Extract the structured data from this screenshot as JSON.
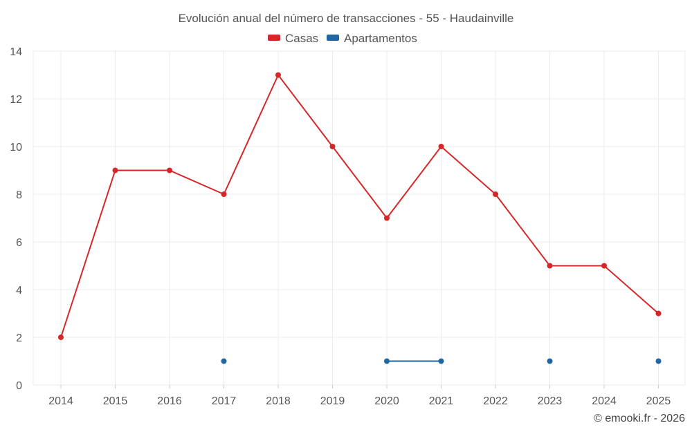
{
  "chart_data": {
    "type": "line",
    "title": "Evolución anual del número de transacciones - 55 - Haudainville",
    "categories": [
      "2014",
      "2015",
      "2016",
      "2017",
      "2018",
      "2019",
      "2020",
      "2021",
      "2022",
      "2023",
      "2024",
      "2025"
    ],
    "series": [
      {
        "name": "Casas",
        "color": "#d62728",
        "values": [
          2,
          9,
          9,
          8,
          13,
          10,
          7,
          10,
          8,
          5,
          5,
          3
        ]
      },
      {
        "name": "Apartamentos",
        "color": "#1f66a3",
        "values": [
          null,
          null,
          null,
          1,
          null,
          null,
          1,
          1,
          null,
          1,
          null,
          1
        ]
      }
    ],
    "ylim": [
      0,
      14
    ],
    "yticks": [
      0,
      2,
      4,
      6,
      8,
      10,
      12,
      14
    ],
    "xlabel": "",
    "ylabel": "",
    "grid": true,
    "legend": "top-center"
  },
  "credit": "© emooki.fr - 2026"
}
